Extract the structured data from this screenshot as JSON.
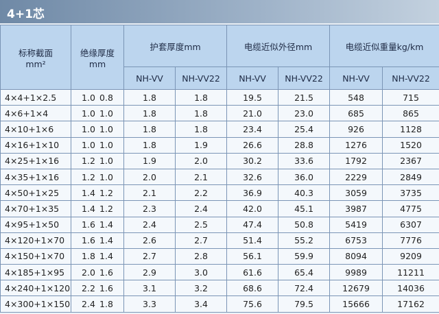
{
  "header": {
    "title": "4+1芯",
    "spec": [
      "标称截面",
      "mm²"
    ],
    "insulation": [
      "绝缘厚度",
      "mm"
    ],
    "jacket": "护套厚度mm",
    "diameter": "电缆近似外径mm",
    "weight": "电缆近似重量kg/km",
    "sub": [
      "NH-VV",
      "NH-VV22",
      "NH-VV",
      "NH-VV22",
      "NH-VV",
      "NH-VV22"
    ]
  },
  "table": {
    "rows": [
      [
        "4×4+1×2.5",
        "1.0",
        "0.8",
        "1.8",
        "1.8",
        "19.5",
        "21.5",
        "548",
        "715"
      ],
      [
        "4×6+1×4",
        "1.0",
        "1.0",
        "1.8",
        "1.8",
        "21.0",
        "23.0",
        "685",
        "865"
      ],
      [
        "4×10+1×6",
        "1.0",
        "1.0",
        "1.8",
        "1.8",
        "23.4",
        "25.4",
        "926",
        "1128"
      ],
      [
        "4×16+1×10",
        "1.0",
        "1.0",
        "1.8",
        "1.9",
        "26.6",
        "28.8",
        "1276",
        "1520"
      ],
      [
        "4×25+1×16",
        "1.2",
        "1.0",
        "1.9",
        "2.0",
        "30.2",
        "33.6",
        "1792",
        "2367"
      ],
      [
        "4×35+1×16",
        "1.2",
        "1.0",
        "2.0",
        "2.1",
        "32.6",
        "36.0",
        "2229",
        "2849"
      ],
      [
        "4×50+1×25",
        "1.4",
        "1.2",
        "2.1",
        "2.2",
        "36.9",
        "40.3",
        "3059",
        "3735"
      ],
      [
        "4×70+1×35",
        "1.4",
        "1.2",
        "2.3",
        "2.4",
        "42.0",
        "45.1",
        "3987",
        "4775"
      ],
      [
        "4×95+1×50",
        "1.6",
        "1.4",
        "2.4",
        "2.5",
        "47.4",
        "50.8",
        "5419",
        "6307"
      ],
      [
        "4×120+1×70",
        "1.6",
        "1.4",
        "2.6",
        "2.7",
        "51.4",
        "55.2",
        "6753",
        "7776"
      ],
      [
        "4×150+1×70",
        "1.8",
        "1.4",
        "2.7",
        "2.8",
        "56.1",
        "59.9",
        "8094",
        "9209"
      ],
      [
        "4×185+1×95",
        "2.0",
        "1.6",
        "2.9",
        "3.0",
        "61.6",
        "65.4",
        "9989",
        "11211"
      ],
      [
        "4×240+1×120",
        "2.2",
        "1.6",
        "3.1",
        "3.2",
        "68.6",
        "72.4",
        "12679",
        "14036"
      ],
      [
        "4×300+1×150",
        "2.4",
        "1.8",
        "3.3",
        "3.4",
        "75.6",
        "79.5",
        "15666",
        "17162"
      ]
    ]
  }
}
